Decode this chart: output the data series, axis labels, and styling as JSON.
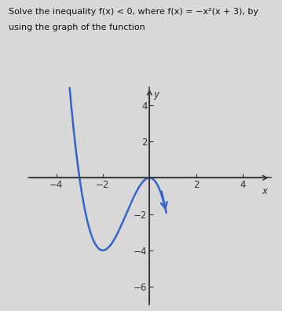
{
  "xlabel": "x",
  "ylabel": "y",
  "xlim": [
    -5.2,
    5.2
  ],
  "ylim": [
    -7.0,
    5.0
  ],
  "xticks": [
    -4,
    -2,
    2,
    4
  ],
  "yticks": [
    -6,
    -4,
    -2,
    2,
    4
  ],
  "curve_color": "#3366cc",
  "curve_linewidth": 1.8,
  "background_color": "#d8d8d8",
  "axis_color": "#333333",
  "tick_label_fontsize": 8.5,
  "text_fontsize": 8.0,
  "x_curve_start": -4.55,
  "x_curve_end": 0.72,
  "title_line1": "Solve the inequality f(x) < 0, where f(x) = −x²(x + 3), by",
  "title_line2": "using the graph of the function"
}
